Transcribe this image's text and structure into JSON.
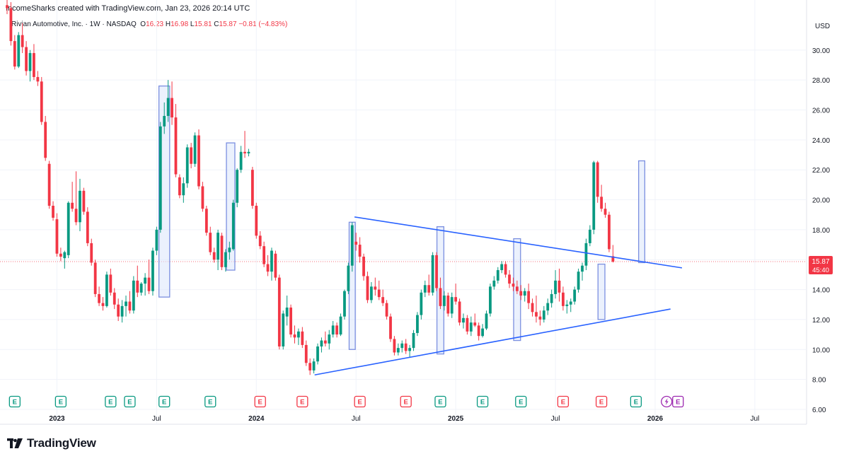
{
  "credit": "IncomeSharks created with TradingView.com, Jan 23, 2026 20:14 UTC",
  "legend": {
    "symbol": "Rivian Automotive, Inc. · 1W · NASDAQ",
    "o_label": "O",
    "o": "16.23",
    "h_label": "H",
    "h": "16.98",
    "l_label": "L",
    "l": "15.81",
    "c_label": "C",
    "c": "15.87",
    "change": "−0.81 (−4.83%)"
  },
  "brand": "TradingView",
  "colors": {
    "up": "#089981",
    "down": "#f23645",
    "trend": "#2962ff",
    "box": "#7b8fe0",
    "boxFill": "#dbe6fb"
  },
  "chart_data": {
    "type": "candlestick",
    "title": "Rivian Automotive, Inc. · 1W · NASDAQ",
    "currency": "USD",
    "y_ticks": [
      "30.00",
      "28.00",
      "26.00",
      "24.00",
      "22.00",
      "20.00",
      "18.00",
      "16.00",
      "14.00",
      "12.00",
      "10.00",
      "8.00",
      "6.00"
    ],
    "y_range": [
      5.1,
      32.4
    ],
    "x_labels": [
      {
        "label": "2023",
        "week": 13
      },
      {
        "label": "Jul",
        "week": 39
      },
      {
        "label": "2024",
        "week": 65
      },
      {
        "label": "Jul",
        "week": 91
      },
      {
        "label": "2025",
        "week": 117
      },
      {
        "label": "Jul",
        "week": 143
      },
      {
        "label": "2026",
        "week": 169
      },
      {
        "label": "Jul",
        "week": 195
      }
    ],
    "last_price": "15.87",
    "countdown": "45:40",
    "candles": [
      [
        33.0,
        33.5,
        32.4,
        32.8
      ],
      [
        32.8,
        33.2,
        30.3,
        30.6
      ],
      [
        30.6,
        31.0,
        28.7,
        28.9
      ],
      [
        28.9,
        31.2,
        28.8,
        31.0
      ],
      [
        31.0,
        31.8,
        29.8,
        30.2
      ],
      [
        30.2,
        30.6,
        28.3,
        28.6
      ],
      [
        28.6,
        30.0,
        27.9,
        29.8
      ],
      [
        29.8,
        30.4,
        28.0,
        28.2
      ],
      [
        28.2,
        28.6,
        27.6,
        27.9
      ],
      [
        27.9,
        28.2,
        25.0,
        25.2
      ],
      [
        25.2,
        25.6,
        22.6,
        22.8
      ],
      [
        22.4,
        22.6,
        19.4,
        19.6
      ],
      [
        19.6,
        19.9,
        18.6,
        18.8
      ],
      [
        18.7,
        19.1,
        16.2,
        16.4
      ],
      [
        16.4,
        16.8,
        15.9,
        16.2
      ],
      [
        16.1,
        16.6,
        15.4,
        16.5
      ],
      [
        16.3,
        19.9,
        16.1,
        19.8
      ],
      [
        19.8,
        21.2,
        19.2,
        19.4
      ],
      [
        19.4,
        21.9,
        18.3,
        18.5
      ],
      [
        18.5,
        21.4,
        17.9,
        20.6
      ],
      [
        20.6,
        20.8,
        19.0,
        19.2
      ],
      [
        19.2,
        19.5,
        16.9,
        17.1
      ],
      [
        17.1,
        17.4,
        15.6,
        15.8
      ],
      [
        15.8,
        16.0,
        13.5,
        13.7
      ],
      [
        13.7,
        14.2,
        12.9,
        13.1
      ],
      [
        13.1,
        13.5,
        12.6,
        12.9
      ],
      [
        12.9,
        15.2,
        12.8,
        15.0
      ],
      [
        15.0,
        15.4,
        13.6,
        13.8
      ],
      [
        13.8,
        14.1,
        12.7,
        13.0
      ],
      [
        13.0,
        13.4,
        11.9,
        12.2
      ],
      [
        12.2,
        13.3,
        11.8,
        12.9
      ],
      [
        12.9,
        13.6,
        12.2,
        13.2
      ],
      [
        13.2,
        13.9,
        12.4,
        12.6
      ],
      [
        12.6,
        14.9,
        12.4,
        14.6
      ],
      [
        14.6,
        15.6,
        13.5,
        13.8
      ],
      [
        13.8,
        14.5,
        13.6,
        14.4
      ],
      [
        14.4,
        15.1,
        13.6,
        14.8
      ],
      [
        14.8,
        16.0,
        13.7,
        13.9
      ],
      [
        13.9,
        16.8,
        13.6,
        16.6
      ],
      [
        16.6,
        18.2,
        16.3,
        18.0
      ],
      [
        18.0,
        25.2,
        17.8,
        24.9
      ],
      [
        24.9,
        26.5,
        24.4,
        25.6
      ],
      [
        25.6,
        28.0,
        25.2,
        26.8
      ],
      [
        26.8,
        27.9,
        25.0,
        25.5
      ],
      [
        25.5,
        26.4,
        21.5,
        21.7
      ],
      [
        21.5,
        21.7,
        20.1,
        20.3
      ],
      [
        20.3,
        21.5,
        19.8,
        21.1
      ],
      [
        21.1,
        23.7,
        20.8,
        23.5
      ],
      [
        23.5,
        23.8,
        22.1,
        22.4
      ],
      [
        22.4,
        24.5,
        22.2,
        24.3
      ],
      [
        24.3,
        24.7,
        20.7,
        20.9
      ],
      [
        20.9,
        21.2,
        19.2,
        19.4
      ],
      [
        19.4,
        19.6,
        17.6,
        17.8
      ],
      [
        17.8,
        18.2,
        16.3,
        16.5
      ],
      [
        16.5,
        16.8,
        15.8,
        16.0
      ],
      [
        16.0,
        18.0,
        15.3,
        17.8
      ],
      [
        17.6,
        17.8,
        15.3,
        15.5
      ],
      [
        15.5,
        16.7,
        15.2,
        16.5
      ],
      [
        16.5,
        17.2,
        16.0,
        16.8
      ],
      [
        16.7,
        20.0,
        16.6,
        19.8
      ],
      [
        19.8,
        22.1,
        19.5,
        22.0
      ],
      [
        22.0,
        23.6,
        21.8,
        23.2
      ],
      [
        23.2,
        24.6,
        22.8,
        23.1
      ],
      [
        23.1,
        23.4,
        22.9,
        23.2
      ],
      [
        22.0,
        22.2,
        19.4,
        19.6
      ],
      [
        19.6,
        19.8,
        17.4,
        17.6
      ],
      [
        17.6,
        17.9,
        16.7,
        16.9
      ],
      [
        16.9,
        17.2,
        15.5,
        15.7
      ],
      [
        15.7,
        16.3,
        14.9,
        15.2
      ],
      [
        15.2,
        16.8,
        14.6,
        16.6
      ],
      [
        16.4,
        16.6,
        14.6,
        14.8
      ],
      [
        14.8,
        15.0,
        10.0,
        10.2
      ],
      [
        10.2,
        12.6,
        10.0,
        12.4
      ],
      [
        12.2,
        13.6,
        11.6,
        12.8
      ],
      [
        12.8,
        13.0,
        10.8,
        11.0
      ],
      [
        11.0,
        11.6,
        10.4,
        10.8
      ],
      [
        10.8,
        11.4,
        10.3,
        11.2
      ],
      [
        11.2,
        11.5,
        10.1,
        10.3
      ],
      [
        10.3,
        10.6,
        8.9,
        9.1
      ],
      [
        9.1,
        9.4,
        8.3,
        8.6
      ],
      [
        8.6,
        9.4,
        8.4,
        9.2
      ],
      [
        9.2,
        10.4,
        9.0,
        10.2
      ],
      [
        10.2,
        10.8,
        9.8,
        10.6
      ],
      [
        10.6,
        11.2,
        10.2,
        10.4
      ],
      [
        10.4,
        11.3,
        10.0,
        11.0
      ],
      [
        11.0,
        11.9,
        10.8,
        11.6
      ],
      [
        11.6,
        11.8,
        10.8,
        11.0
      ],
      [
        11.0,
        12.4,
        10.9,
        12.2
      ],
      [
        12.2,
        14.0,
        12.0,
        13.9
      ],
      [
        13.9,
        15.8,
        13.7,
        15.6
      ],
      [
        15.6,
        18.5,
        15.2,
        18.3
      ],
      [
        17.2,
        17.8,
        16.6,
        17.0
      ],
      [
        17.0,
        17.5,
        15.8,
        16.2
      ],
      [
        16.2,
        16.4,
        14.6,
        14.9
      ],
      [
        14.9,
        15.2,
        13.1,
        13.3
      ],
      [
        13.3,
        14.5,
        13.1,
        14.2
      ],
      [
        14.2,
        14.8,
        13.6,
        14.0
      ],
      [
        14.0,
        14.6,
        13.3,
        13.5
      ],
      [
        13.5,
        14.0,
        12.9,
        13.1
      ],
      [
        13.1,
        13.3,
        12.0,
        12.2
      ],
      [
        12.2,
        12.4,
        10.5,
        10.7
      ],
      [
        10.7,
        10.9,
        9.6,
        9.8
      ],
      [
        9.8,
        10.4,
        9.6,
        10.1
      ],
      [
        10.1,
        10.6,
        9.8,
        10.4
      ],
      [
        10.4,
        10.7,
        9.7,
        9.9
      ],
      [
        9.9,
        10.3,
        9.5,
        10.1
      ],
      [
        10.1,
        11.3,
        9.9,
        11.1
      ],
      [
        11.1,
        12.5,
        10.9,
        12.3
      ],
      [
        12.3,
        14.0,
        12.0,
        13.8
      ],
      [
        13.8,
        14.6,
        13.5,
        14.3
      ],
      [
        14.3,
        15.0,
        13.6,
        13.8
      ],
      [
        13.8,
        16.5,
        13.6,
        16.3
      ],
      [
        16.3,
        16.5,
        13.9,
        14.1
      ],
      [
        14.1,
        14.8,
        12.7,
        12.9
      ],
      [
        12.9,
        13.9,
        12.6,
        13.6
      ],
      [
        13.6,
        13.8,
        12.2,
        12.4
      ],
      [
        12.4,
        13.8,
        12.1,
        13.5
      ],
      [
        13.5,
        14.4,
        13.0,
        13.2
      ],
      [
        13.2,
        13.4,
        11.6,
        11.8
      ],
      [
        11.8,
        12.4,
        11.4,
        12.1
      ],
      [
        12.1,
        12.3,
        11.0,
        11.2
      ],
      [
        11.2,
        12.2,
        10.9,
        11.8
      ],
      [
        11.8,
        12.4,
        11.5,
        11.6
      ],
      [
        11.6,
        11.8,
        10.6,
        10.9
      ],
      [
        10.9,
        11.7,
        10.8,
        11.4
      ],
      [
        11.4,
        12.6,
        11.3,
        12.4
      ],
      [
        12.4,
        14.4,
        12.2,
        14.2
      ],
      [
        14.2,
        14.9,
        14.0,
        14.6
      ],
      [
        14.6,
        15.5,
        14.4,
        15.3
      ],
      [
        15.3,
        15.9,
        15.1,
        15.7
      ],
      [
        15.7,
        15.9,
        14.8,
        15.0
      ],
      [
        15.0,
        15.3,
        14.1,
        14.4
      ],
      [
        14.4,
        14.8,
        13.9,
        14.2
      ],
      [
        14.2,
        14.6,
        13.7,
        13.9
      ],
      [
        13.9,
        14.3,
        13.3,
        13.6
      ],
      [
        13.6,
        14.1,
        13.2,
        13.9
      ],
      [
        13.9,
        14.4,
        12.7,
        13.1
      ],
      [
        13.1,
        13.4,
        12.2,
        12.5
      ],
      [
        12.5,
        13.6,
        11.8,
        12.2
      ],
      [
        12.2,
        12.6,
        11.6,
        12.0
      ],
      [
        12.0,
        12.9,
        11.8,
        12.6
      ],
      [
        12.6,
        13.4,
        12.3,
        13.1
      ],
      [
        13.1,
        14.0,
        12.8,
        13.7
      ],
      [
        13.7,
        15.3,
        13.4,
        14.6
      ],
      [
        14.6,
        15.4,
        13.2,
        13.8
      ],
      [
        13.8,
        14.2,
        12.6,
        12.9
      ],
      [
        12.9,
        13.3,
        12.4,
        13.0
      ],
      [
        13.0,
        13.4,
        12.5,
        13.2
      ],
      [
        13.2,
        14.2,
        13.0,
        14.0
      ],
      [
        14.0,
        15.4,
        13.8,
        15.2
      ],
      [
        15.2,
        15.8,
        14.6,
        15.6
      ],
      [
        15.6,
        17.4,
        15.3,
        17.1
      ],
      [
        17.1,
        18.3,
        16.9,
        18.0
      ],
      [
        18.0,
        22.6,
        17.7,
        22.5
      ],
      [
        22.5,
        22.6,
        19.8,
        20.2
      ],
      [
        20.2,
        21.0,
        19.2,
        19.4
      ],
      [
        19.4,
        19.8,
        18.8,
        19.0
      ],
      [
        19.0,
        19.2,
        16.5,
        16.7
      ],
      [
        16.23,
        16.98,
        15.81,
        15.87
      ]
    ],
    "boxes": [
      {
        "from": 39.6,
        "to": 42.4,
        "low": 13.5,
        "high": 27.6
      },
      {
        "from": 57.2,
        "to": 59.4,
        "low": 15.3,
        "high": 23.8
      },
      {
        "from": 89.2,
        "to": 90.8,
        "low": 10.0,
        "high": 18.5
      },
      {
        "from": 112.1,
        "to": 113.9,
        "low": 9.7,
        "high": 18.2
      },
      {
        "from": 132.1,
        "to": 133.9,
        "low": 10.6,
        "high": 17.4
      },
      {
        "from": 154.1,
        "to": 155.9,
        "low": 12.0,
        "high": 15.7
      },
      {
        "from": 164.7,
        "to": 166.3,
        "low": 15.8,
        "high": 22.6
      }
    ],
    "trendlines": [
      {
        "x1": 90.6,
        "y1": 18.85,
        "x2": 176.0,
        "y2": 15.45
      },
      {
        "x1": 80.2,
        "y1": 8.3,
        "x2": 173.0,
        "y2": 12.7
      }
    ],
    "events": [
      {
        "week": 2,
        "type": "earnings-up"
      },
      {
        "week": 14,
        "type": "earnings-up"
      },
      {
        "week": 27,
        "type": "earnings-up"
      },
      {
        "week": 32,
        "type": "earnings-up"
      },
      {
        "week": 41,
        "type": "earnings-up"
      },
      {
        "week": 53,
        "type": "earnings-up"
      },
      {
        "week": 66,
        "type": "earnings-down"
      },
      {
        "week": 77,
        "type": "earnings-down"
      },
      {
        "week": 92,
        "type": "earnings-down"
      },
      {
        "week": 104,
        "type": "earnings-down"
      },
      {
        "week": 113,
        "type": "earnings-up"
      },
      {
        "week": 124,
        "type": "earnings-up"
      },
      {
        "week": 134,
        "type": "earnings-up"
      },
      {
        "week": 145,
        "type": "earnings-down"
      },
      {
        "week": 155,
        "type": "earnings-down"
      },
      {
        "week": 164,
        "type": "earnings-up"
      },
      {
        "week": 172,
        "type": "upcoming"
      }
    ],
    "event_label": "E"
  }
}
